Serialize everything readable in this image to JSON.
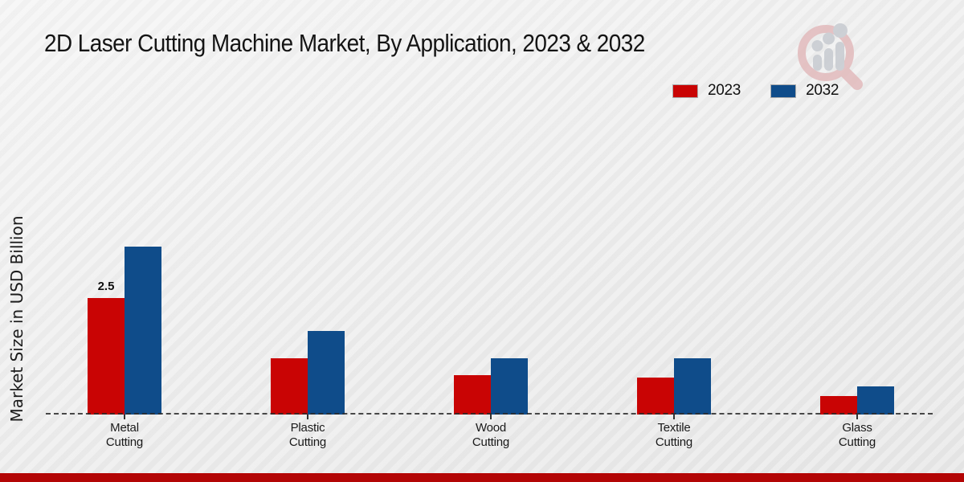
{
  "title": "2D Laser Cutting Machine Market, By Application, 2023 & 2032",
  "y_axis_title": "Market Size in USD Billion",
  "colors": {
    "series_2023": "#c90404",
    "series_2032": "#0f4c8a",
    "bottom_strip": "#b30505",
    "baseline": "#2a2a2a",
    "background": "#ededed"
  },
  "logo": {
    "name": "magnifier-bar-chart-logo",
    "ring_color": "#e2babc",
    "bar_color": "#c7cbd1"
  },
  "chart_data": {
    "type": "bar",
    "title": "2D Laser Cutting Machine Market, By Application, 2023 & 2032",
    "xlabel": "",
    "ylabel": "Market Size in USD Billion",
    "categories": [
      "Metal Cutting",
      "Plastic Cutting",
      "Wood Cutting",
      "Textile Cutting",
      "Glass Cutting"
    ],
    "series": [
      {
        "name": "2023",
        "color": "#c90404",
        "values": [
          2.5,
          1.2,
          0.85,
          0.8,
          0.4
        ]
      },
      {
        "name": "2032",
        "color": "#0f4c8a",
        "values": [
          3.6,
          1.8,
          1.2,
          1.2,
          0.6
        ]
      }
    ],
    "annotations": [
      {
        "category_index": 0,
        "series_index": 0,
        "text": "2.5"
      }
    ],
    "ylim": [
      0,
      4
    ],
    "grid": false,
    "y_tick_labels": "none",
    "zero_line_style": "dashed",
    "legend_position": "top-right"
  }
}
